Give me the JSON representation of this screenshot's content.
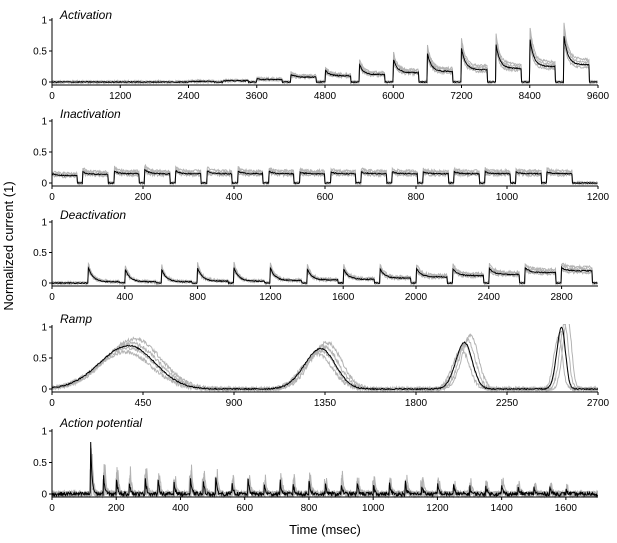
{
  "figure": {
    "ylabel": "Normalized current (1)",
    "xlabel": "Time (msec)"
  },
  "chart_data": [
    {
      "type": "line",
      "title": "Activation",
      "xlim": [
        0,
        9600
      ],
      "ylim": [
        0,
        1
      ],
      "xticks": [
        "0",
        "1200",
        "2400",
        "3600",
        "4800",
        "6000",
        "7200",
        "8400",
        "9600"
      ],
      "yticks": [
        "0",
        "0.5",
        "1"
      ],
      "protocol": "step",
      "sweep_start": 0,
      "sweep_period": 600,
      "step_offset": 0,
      "step_duration": 450,
      "step_peaks": [
        0,
        0,
        0,
        0,
        0.01,
        0.02,
        0.05,
        0.12,
        0.2,
        0.3,
        0.38,
        0.47,
        0.55,
        0.65,
        0.72,
        0.76,
        0.8
      ],
      "step_steady": [
        0,
        0,
        0,
        0,
        0.01,
        0.02,
        0.04,
        0.08,
        0.1,
        0.12,
        0.15,
        0.17,
        0.2,
        0.22,
        0.25,
        0.28,
        0.32
      ],
      "tail": 0,
      "series": [
        {
          "name": "",
          "color": "#b3b3b3"
        },
        {
          "name": "",
          "color": "#000000"
        }
      ]
    },
    {
      "type": "line",
      "title": "Inactivation",
      "xlim": [
        0,
        1200
      ],
      "ylim": [
        0,
        1
      ],
      "xticks": [
        "0",
        "200",
        "400",
        "600",
        "800",
        "1000",
        "1200"
      ],
      "yticks": [
        "0",
        "0.5",
        "1"
      ],
      "protocol": "step",
      "sweep_start": 0,
      "sweep_period": 68,
      "step_offset": 0,
      "step_duration": 55,
      "step_peaks": [
        0.15,
        0.18,
        0.2,
        0.22,
        0.2,
        0.2,
        0.2,
        0.2,
        0.18,
        0.18,
        0.18,
        0.18,
        0.18,
        0.18,
        0.18,
        0.18,
        0.18
      ],
      "step_steady": [
        0.12,
        0.14,
        0.15,
        0.15,
        0.15,
        0.15,
        0.15,
        0.15,
        0.15,
        0.15,
        0.15,
        0.15,
        0.15,
        0.15,
        0.15,
        0.15,
        0.15
      ],
      "tail": 0,
      "series": [
        {
          "name": "",
          "color": "#b3b3b3"
        },
        {
          "name": "",
          "color": "#000000"
        }
      ]
    },
    {
      "type": "line",
      "title": "Deactivation",
      "xlim": [
        0,
        3000
      ],
      "ylim": [
        0,
        1
      ],
      "xticks": [
        "0",
        "400",
        "800",
        "1200",
        "1600",
        "2000",
        "2400",
        "2800"
      ],
      "yticks": [
        "0",
        "0.5",
        "1"
      ],
      "protocol": "step",
      "sweep_start": 200,
      "sweep_period": 200,
      "step_offset": 0,
      "step_duration": 170,
      "step_peaks": [
        0.25,
        0.25,
        0.25,
        0.25,
        0.25,
        0.25,
        0.25,
        0.25,
        0.25,
        0.25,
        0.25,
        0.25,
        0.25,
        0.25
      ],
      "step_steady": [
        0.02,
        0.02,
        0.02,
        0.03,
        0.03,
        0.04,
        0.05,
        0.06,
        0.08,
        0.1,
        0.12,
        0.14,
        0.17,
        0.2
      ],
      "tail": 0,
      "series": [
        {
          "name": "",
          "color": "#b3b3b3"
        },
        {
          "name": "",
          "color": "#000000"
        }
      ]
    },
    {
      "type": "line",
      "title": "Ramp",
      "xlim": [
        0,
        2700
      ],
      "ylim": [
        0,
        1
      ],
      "xticks": [
        "0",
        "450",
        "900",
        "1350",
        "1800",
        "2250",
        "2700"
      ],
      "yticks": [
        "0",
        "0.5",
        "1"
      ],
      "protocol": "ramp",
      "peaks": [
        {
          "x": 380,
          "y": 0.7,
          "w_up": 300,
          "w_down": 270
        },
        {
          "x": 1330,
          "y": 0.65,
          "w_up": 170,
          "w_down": 150
        },
        {
          "x": 2040,
          "y": 0.75,
          "w_up": 90,
          "w_down": 80
        },
        {
          "x": 2520,
          "y": 1.0,
          "w_up": 50,
          "w_down": 40
        }
      ],
      "series": [
        {
          "name": "",
          "color": "#b3b3b3"
        },
        {
          "name": "",
          "color": "#000000"
        }
      ]
    },
    {
      "type": "line",
      "title": "Action potential",
      "xlim": [
        0,
        1700
      ],
      "ylim": [
        0,
        1
      ],
      "xticks": [
        "0",
        "200",
        "400",
        "600",
        "800",
        "1000",
        "1200",
        "1400",
        "1600"
      ],
      "yticks": [
        "0",
        "0.5",
        "1"
      ],
      "protocol": "ap",
      "spike_times": [
        120,
        160,
        200,
        240,
        290,
        330,
        380,
        430,
        470,
        510,
        560,
        610,
        660,
        710,
        750,
        800,
        850,
        900,
        950,
        1000,
        1050,
        1100,
        1150,
        1200,
        1250,
        1300,
        1350,
        1400,
        1450,
        1500,
        1550,
        1600
      ],
      "spike_heights": [
        0.95,
        0.35,
        0.3,
        0.25,
        0.3,
        0.25,
        0.2,
        0.3,
        0.25,
        0.25,
        0.2,
        0.25,
        0.2,
        0.25,
        0.2,
        0.25,
        0.2,
        0.2,
        0.2,
        0.2,
        0.2,
        0.2,
        0.2,
        0.2,
        0.15,
        0.15,
        0.15,
        0.15,
        0.15,
        0.12,
        0.12,
        0.1
      ],
      "series": [
        {
          "name": "",
          "color": "#b3b3b3"
        },
        {
          "name": "",
          "color": "#000000"
        }
      ]
    }
  ]
}
